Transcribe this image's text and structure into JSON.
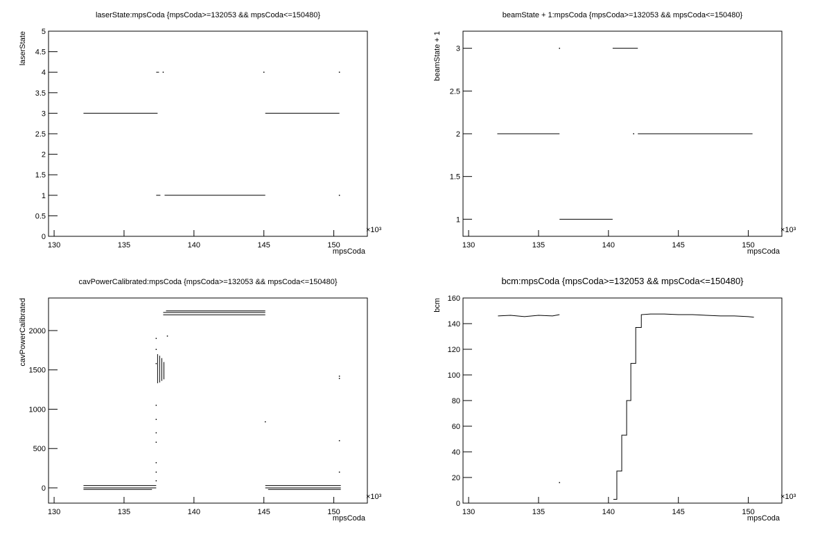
{
  "chart_data": [
    {
      "type": "line",
      "title": "laserState:mpsCoda {mpsCoda>=132053 && mpsCoda<=150480}",
      "x_label": "mpsCoda",
      "y_label": "laserState",
      "x_exponent_label": "×10³",
      "xlim": [
        129.6,
        152.4
      ],
      "xticks": [
        130,
        135,
        140,
        145,
        150
      ],
      "ylim": [
        0,
        5
      ],
      "yticks": [
        0,
        0.5,
        1,
        1.5,
        2,
        2.5,
        3,
        3.5,
        4,
        4.5,
        5
      ],
      "series": [
        {
          "color": "#000000",
          "x": [
            132.1,
            137.4
          ],
          "values": [
            3,
            3
          ]
        },
        {
          "color": "#000000",
          "x": [
            137.3,
            137.5,
            137.6,
            137.8
          ],
          "values": [
            4,
            4,
            null,
            4
          ]
        },
        {
          "color": "#000000",
          "x": [
            137.3,
            137.6,
            137.7,
            137.9,
            145.1
          ],
          "values": [
            1,
            1,
            null,
            1,
            1
          ]
        },
        {
          "color": "#000000",
          "x": [
            145.1,
            150.4
          ],
          "values": [
            3,
            3
          ]
        },
        {
          "color": "#000000",
          "x": [
            145.0,
            null,
            150.4,
            null,
            150.4
          ],
          "values": [
            4,
            null,
            4,
            null,
            1
          ]
        }
      ]
    },
    {
      "type": "line",
      "title": "beamState + 1:mpsCoda {mpsCoda>=132053 && mpsCoda<=150480}",
      "x_label": "mpsCoda",
      "y_label": "beamState + 1",
      "x_exponent_label": "×10³",
      "xlim": [
        129.6,
        152.4
      ],
      "xticks": [
        130,
        135,
        140,
        145,
        150
      ],
      "ylim": [
        0.8,
        3.2
      ],
      "yticks": [
        1,
        1.5,
        2,
        2.5,
        3
      ],
      "series": [
        {
          "color": "#000000",
          "x": [
            132.05,
            136.5
          ],
          "values": [
            2,
            2
          ]
        },
        {
          "color": "#000000",
          "x": [
            136.5,
            140.3
          ],
          "values": [
            1,
            1
          ]
        },
        {
          "color": "#000000",
          "x": [
            140.3,
            142.1
          ],
          "values": [
            3,
            3
          ]
        },
        {
          "color": "#000000",
          "x": [
            142.1,
            150.3
          ],
          "values": [
            2,
            2
          ]
        },
        {
          "color": "#000000",
          "x": [
            136.5,
            null,
            141.8
          ],
          "values": [
            3,
            null,
            2
          ]
        }
      ]
    },
    {
      "type": "line",
      "title": "cavPowerCalibrated:mpsCoda {mpsCoda>=132053 && mpsCoda<=150480}",
      "x_label": "mpsCoda",
      "y_label": "cavPowerCalibrated",
      "x_exponent_label": "×10³",
      "xlim": [
        129.6,
        152.4
      ],
      "xticks": [
        130,
        135,
        140,
        145,
        150
      ],
      "ylim": [
        -194,
        2414
      ],
      "yticks": [
        0,
        500,
        1000,
        1500,
        2000
      ],
      "series": [
        {
          "color": "#000000",
          "x": [
            138.0,
            145.1
          ],
          "values": [
            2250,
            2250
          ]
        },
        {
          "color": "#000000",
          "x": [
            137.8,
            145.1
          ],
          "values": [
            2230,
            2230
          ]
        },
        {
          "color": "#000000",
          "x": [
            137.8,
            145.1
          ],
          "values": [
            2200,
            2200
          ]
        },
        {
          "color": "#000000",
          "x": [
            132.1,
            137.3
          ],
          "values": [
            30,
            30
          ]
        },
        {
          "color": "#000000",
          "x": [
            132.1,
            137.3
          ],
          "values": [
            0,
            0
          ]
        },
        {
          "color": "#000000",
          "x": [
            132.1,
            137.0
          ],
          "values": [
            -20,
            -20
          ]
        },
        {
          "color": "#000000",
          "x": [
            145.1,
            150.5
          ],
          "values": [
            30,
            30
          ]
        },
        {
          "color": "#000000",
          "x": [
            145.1,
            150.5
          ],
          "values": [
            0,
            0
          ]
        },
        {
          "color": "#000000",
          "x": [
            145.3,
            150.5
          ],
          "values": [
            -20,
            -20
          ]
        },
        {
          "color": "#000000",
          "x": [
            137.4,
            137.4
          ],
          "values": [
            1330,
            1700
          ]
        },
        {
          "color": "#000000",
          "x": [
            137.55,
            137.55
          ],
          "values": [
            1340,
            1680
          ]
        },
        {
          "color": "#000000",
          "x": [
            137.7,
            137.7
          ],
          "values": [
            1360,
            1650
          ]
        },
        {
          "color": "#000000",
          "x": [
            137.85,
            137.85
          ],
          "values": [
            1380,
            1600
          ]
        },
        {
          "color": "#000000",
          "x": [
            137.3,
            null,
            137.3,
            null,
            137.3,
            null,
            137.3,
            null,
            137.3,
            null,
            137.3,
            null,
            137.3,
            null,
            137.3,
            null,
            137.3,
            null,
            137.3,
            null,
            138.1,
            null,
            145.1,
            null,
            150.4,
            null,
            150.4,
            null,
            150.4,
            null,
            150.4
          ],
          "values": [
            1900,
            null,
            1760,
            null,
            1580,
            null,
            1050,
            null,
            870,
            null,
            700,
            null,
            580,
            null,
            320,
            null,
            200,
            null,
            90,
            null,
            1930,
            null,
            840,
            null,
            1420,
            null,
            1390,
            null,
            600,
            null,
            200
          ]
        }
      ]
    },
    {
      "type": "line",
      "title": "bcm:mpsCoda {mpsCoda>=132053 && mpsCoda<=150480}",
      "x_label": "mpsCoda",
      "y_label": "bcm",
      "x_exponent_label": "×10³",
      "xlim": [
        129.6,
        152.4
      ],
      "xticks": [
        130,
        135,
        140,
        145,
        150
      ],
      "ylim": [
        0,
        160
      ],
      "yticks": [
        0,
        20,
        40,
        60,
        80,
        100,
        120,
        140,
        160
      ],
      "series": [
        {
          "color": "#000000",
          "x": [
            132.1,
            133,
            134,
            135,
            136,
            136.5
          ],
          "values": [
            146,
            146.5,
            145.5,
            146.5,
            146,
            147
          ]
        },
        {
          "color": "#000000",
          "x": [
            136.5
          ],
          "values": [
            16
          ]
        },
        {
          "color": "#000000",
          "x": [
            140.35,
            140.6,
            140.6,
            140.95,
            140.95,
            141.3,
            141.3,
            141.6,
            141.6,
            141.95,
            141.95,
            142.35,
            142.35,
            143,
            144,
            145,
            146,
            147,
            148,
            149,
            150,
            150.4
          ],
          "values": [
            3,
            3,
            25,
            25,
            53,
            53,
            80,
            80,
            109,
            109,
            137,
            137,
            147,
            147.5,
            147.5,
            147,
            147,
            146.5,
            146,
            146,
            145.5,
            145
          ]
        }
      ]
    }
  ]
}
